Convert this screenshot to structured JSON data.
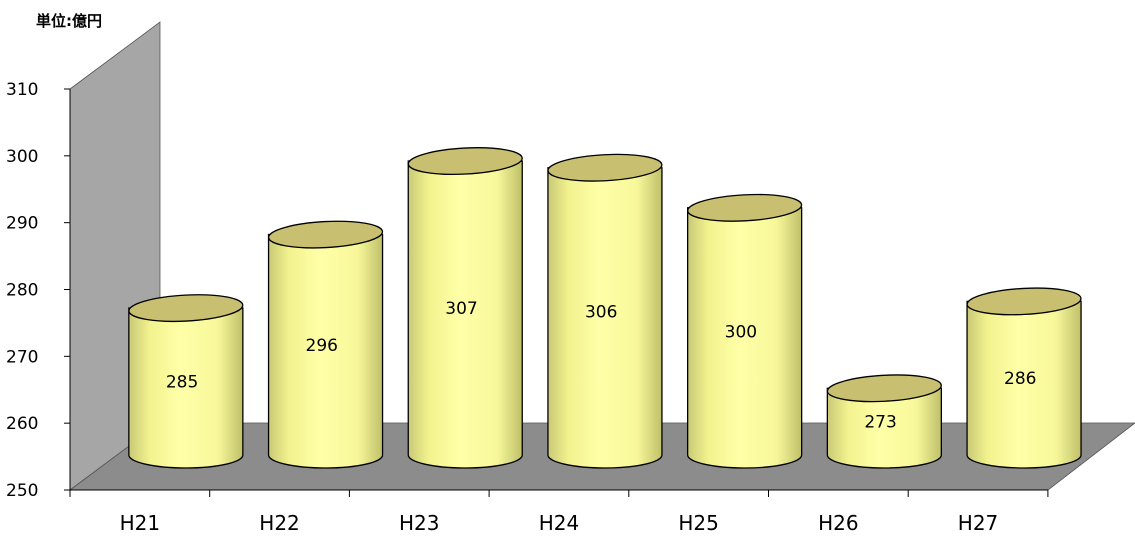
{
  "chart_data": {
    "type": "bar",
    "style": "3d-cylinder",
    "unit_label": "単位:億円",
    "categories": [
      "H21",
      "H22",
      "H23",
      "H24",
      "H25",
      "H26",
      "H27"
    ],
    "values": [
      285,
      296,
      307,
      306,
      300,
      273,
      286
    ],
    "ylim": [
      250,
      310
    ],
    "yticks": [
      250,
      260,
      270,
      280,
      290,
      300,
      310
    ],
    "grid": false,
    "legend": "none",
    "colors": {
      "cylinder_body": "#FFFF99",
      "cylinder_top": "#C8C070",
      "wall": "#A6A6A6",
      "floor": "#8C8C8C"
    }
  }
}
